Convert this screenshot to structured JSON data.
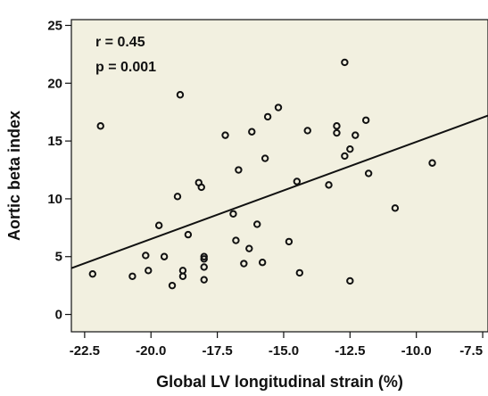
{
  "chart_data": {
    "type": "scatter",
    "title": "",
    "xlabel": "Global LV longitudinal strain (%)",
    "ylabel": "Aortic beta index",
    "xlim": [
      -23.0,
      -7.3
    ],
    "ylim": [
      -1.5,
      25.5
    ],
    "xticks": [
      -22.5,
      -20.0,
      -17.5,
      -15.0,
      -12.5,
      -10.0,
      -7.5
    ],
    "xtick_labels": [
      "-22.5",
      "-20.0",
      "-17.5",
      "-15.0",
      "-12.5",
      "-10.0",
      "-7.5"
    ],
    "yticks": [
      0,
      5,
      10,
      15,
      20,
      25
    ],
    "ytick_labels": [
      "0",
      "5",
      "10",
      "15",
      "20",
      "25"
    ],
    "annotations": [
      "r = 0.45",
      "p = 0.001"
    ],
    "background_color": "#f2f0e0",
    "marker_color": "#111111",
    "grid": false,
    "legend": "none",
    "points": [
      {
        "x": -22.2,
        "y": 3.5
      },
      {
        "x": -21.9,
        "y": 16.3
      },
      {
        "x": -20.7,
        "y": 3.3
      },
      {
        "x": -20.2,
        "y": 5.1
      },
      {
        "x": -20.1,
        "y": 3.8
      },
      {
        "x": -19.7,
        "y": 7.7
      },
      {
        "x": -19.5,
        "y": 5.0
      },
      {
        "x": -19.2,
        "y": 2.5
      },
      {
        "x": -19.0,
        "y": 10.2
      },
      {
        "x": -18.9,
        "y": 19.0
      },
      {
        "x": -18.8,
        "y": 3.3
      },
      {
        "x": -18.8,
        "y": 3.8
      },
      {
        "x": -18.6,
        "y": 6.9
      },
      {
        "x": -18.2,
        "y": 11.4
      },
      {
        "x": -18.1,
        "y": 11.0
      },
      {
        "x": -18.0,
        "y": 4.8
      },
      {
        "x": -18.0,
        "y": 5.0
      },
      {
        "x": -18.0,
        "y": 4.1
      },
      {
        "x": -18.0,
        "y": 3.0
      },
      {
        "x": -17.2,
        "y": 15.5
      },
      {
        "x": -16.9,
        "y": 8.7
      },
      {
        "x": -16.8,
        "y": 6.4
      },
      {
        "x": -16.7,
        "y": 12.5
      },
      {
        "x": -16.5,
        "y": 4.4
      },
      {
        "x": -16.3,
        "y": 5.7
      },
      {
        "x": -16.2,
        "y": 15.8
      },
      {
        "x": -16.0,
        "y": 7.8
      },
      {
        "x": -15.8,
        "y": 4.5
      },
      {
        "x": -15.7,
        "y": 13.5
      },
      {
        "x": -15.6,
        "y": 17.1
      },
      {
        "x": -15.2,
        "y": 17.9
      },
      {
        "x": -14.8,
        "y": 6.3
      },
      {
        "x": -14.5,
        "y": 11.5
      },
      {
        "x": -14.4,
        "y": 3.6
      },
      {
        "x": -14.1,
        "y": 15.9
      },
      {
        "x": -13.3,
        "y": 11.2
      },
      {
        "x": -13.0,
        "y": 16.3
      },
      {
        "x": -13.0,
        "y": 15.7
      },
      {
        "x": -12.7,
        "y": 21.8
      },
      {
        "x": -12.7,
        "y": 13.7
      },
      {
        "x": -12.5,
        "y": 14.3
      },
      {
        "x": -12.5,
        "y": 2.9
      },
      {
        "x": -12.3,
        "y": 15.5
      },
      {
        "x": -11.9,
        "y": 16.8
      },
      {
        "x": -11.8,
        "y": 12.2
      },
      {
        "x": -10.8,
        "y": 9.2
      },
      {
        "x": -9.4,
        "y": 13.1
      }
    ],
    "regression_line": {
      "x": [
        -23.0,
        -7.3
      ],
      "y": [
        4.0,
        17.2
      ]
    }
  }
}
